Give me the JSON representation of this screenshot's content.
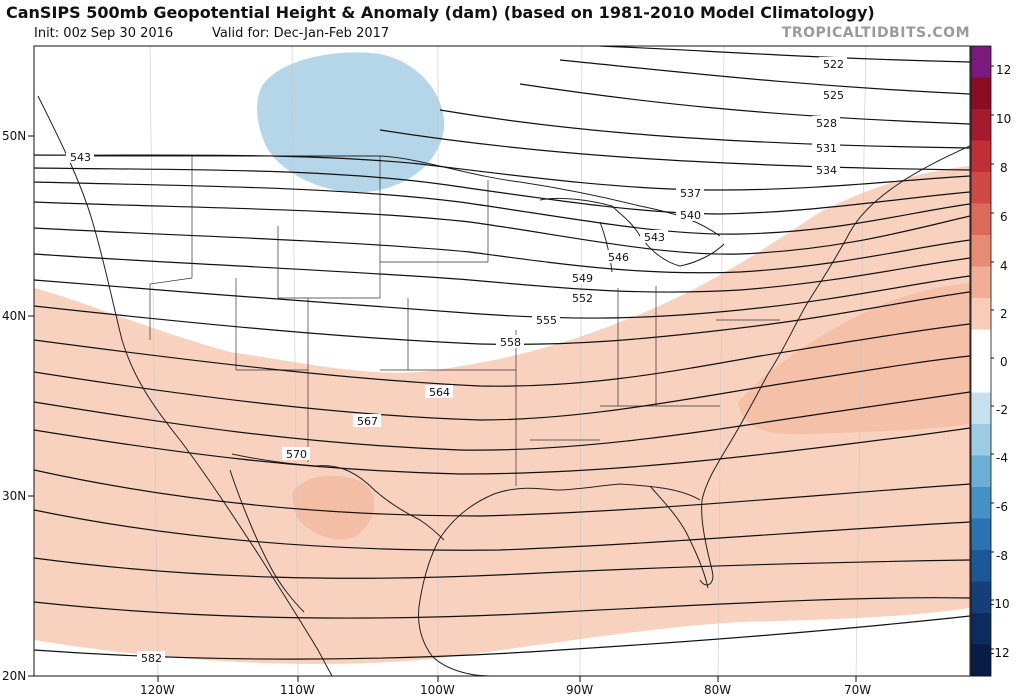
{
  "header": {
    "title": "CanSIPS 500mb Geopotential Height & Anomaly (dam) (based on 1981-2010 Model Climatology)",
    "init": "Init: 00z Sep 30 2016",
    "valid": "Valid for: Dec-Jan-Feb 2017",
    "site": "TROPICALTIDBITS.COM"
  },
  "map": {
    "lat_labels": [
      "50N",
      "40N",
      "30N",
      "20N"
    ],
    "lon_labels": [
      "120W",
      "110W",
      "100W",
      "90W",
      "80W",
      "70W"
    ],
    "contours": [
      "522",
      "525",
      "528",
      "531",
      "534",
      "537",
      "540",
      "543",
      "543",
      "546",
      "549",
      "552",
      "555",
      "558",
      "564",
      "567",
      "570",
      "582"
    ]
  },
  "colorbar": {
    "labels": [
      "12",
      "10",
      "8",
      "6",
      "4",
      "2",
      "0",
      "-2",
      "-4",
      "-6",
      "-8",
      "-10",
      "-12"
    ],
    "colors": [
      "#7b1a7e",
      "#8b0d24",
      "#a51a2e",
      "#bf2f35",
      "#cf4a44",
      "#dc6a5a",
      "#e88b75",
      "#f2ad96",
      "#f8cdb8",
      "#ffffff",
      "#ffffff",
      "#c8e0ee",
      "#9ccbe2",
      "#6bb0d4",
      "#4391c5",
      "#2b73b0",
      "#1c5796",
      "#143f7a",
      "#0d2b5e",
      "#081d44"
    ],
    "accent_positive": "#f7cbb5",
    "accent_negative": "#b4d6e8"
  }
}
